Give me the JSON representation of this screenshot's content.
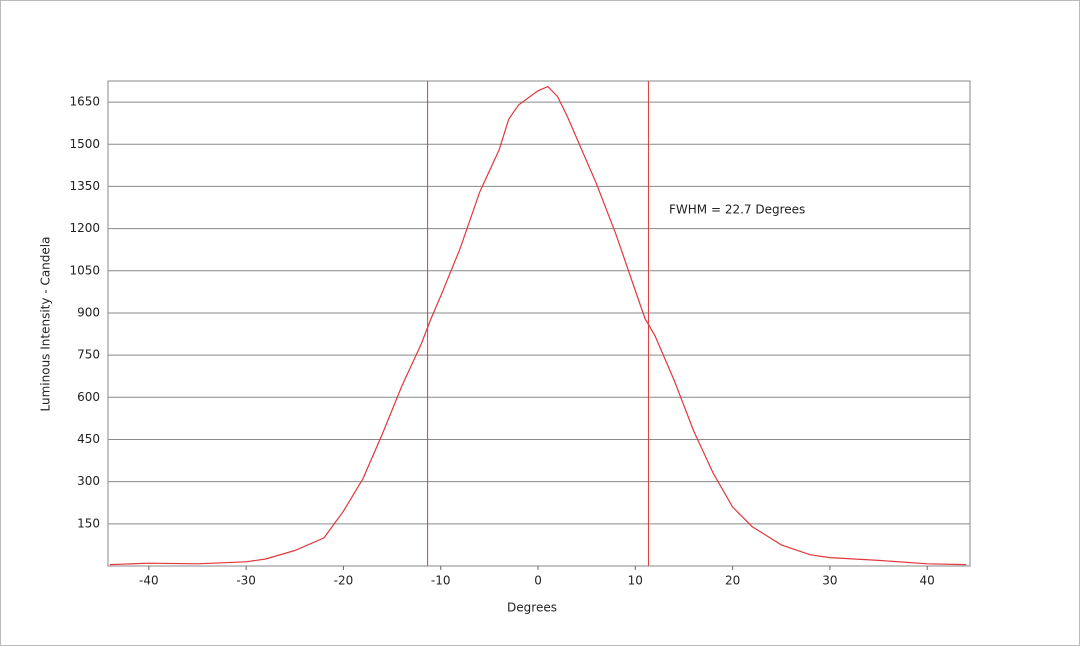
{
  "chart_data": {
    "type": "line",
    "x_label": "Degrees",
    "y_label": "Luminous Intensity - Candela",
    "annotation": "FWHM = 22.7 Degrees",
    "x": [
      -44,
      -40,
      -35,
      -30,
      -28,
      -25,
      -22,
      -20,
      -18,
      -16,
      -14,
      -12,
      -11,
      -10,
      -8,
      -6,
      -4,
      -3,
      -2,
      -1,
      0,
      1,
      2,
      3,
      4,
      6,
      8,
      10,
      11,
      12,
      14,
      16,
      18,
      20,
      22,
      25,
      28,
      30,
      35,
      40,
      44
    ],
    "series": [
      {
        "color": "#e0383c",
        "values": [
          5,
          10,
          8,
          15,
          25,
          55,
          100,
          195,
          310,
          470,
          640,
          790,
          880,
          960,
          1130,
          1330,
          1480,
          1590,
          1640,
          1665,
          1690,
          1705,
          1670,
          1600,
          1520,
          1360,
          1180,
          980,
          880,
          820,
          660,
          480,
          330,
          210,
          140,
          75,
          40,
          30,
          20,
          8,
          5
        ]
      }
    ],
    "vlines": [
      -11.35,
      11.35
    ],
    "vline_color": "#e0383c",
    "xlim": [
      -44.2,
      44.4
    ],
    "ylim": [
      0,
      1725
    ],
    "xticks": [
      -40,
      -30,
      -20,
      -10,
      0,
      10,
      20,
      30,
      40
    ],
    "yticks": [
      150,
      300,
      450,
      600,
      750,
      900,
      1050,
      1200,
      1350,
      1500,
      1650
    ],
    "grid": true
  }
}
